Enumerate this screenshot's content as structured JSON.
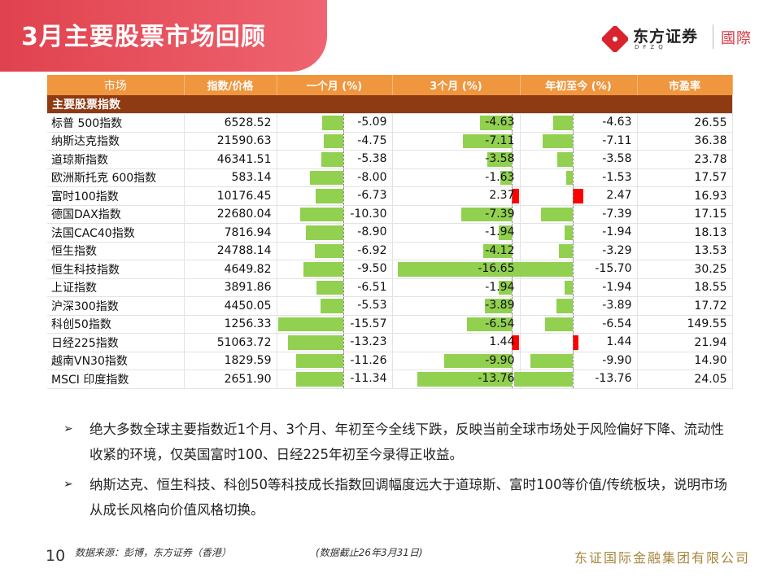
{
  "page": {
    "title": "3月主要股票市场回顾",
    "page_number": "10",
    "source": "数据来源：彭博，东方证券（香港）",
    "as_of": "(数据截止26年3月31日)",
    "company": "东证国际金融集团有限公司"
  },
  "logo": {
    "name_cn": "东方证券",
    "name_en": "DFZQ",
    "intl": "國際"
  },
  "colors": {
    "title_banner": "#e84a56",
    "header": "#ef963e",
    "section": "#8e3a12",
    "bar_negative": "#92d050",
    "bar_positive": "#ff0000",
    "company_text": "#a8863a"
  },
  "table": {
    "headers": [
      "市场",
      "指数/价格",
      "一个月 (%)",
      "3个月 (%)",
      "年初至今 (%)",
      "市盈率"
    ],
    "section_label": "主要股票指数",
    "rows": [
      {
        "name": "标普 500指数",
        "price": "6528.52",
        "m1": "-5.09",
        "m3": "-4.63",
        "ytd": "-4.63",
        "pe": "26.55"
      },
      {
        "name": "纳斯达克指数",
        "price": "21590.63",
        "m1": "-4.75",
        "m3": "-7.11",
        "ytd": "-7.11",
        "pe": "36.38"
      },
      {
        "name": "道琼斯指数",
        "price": "46341.51",
        "m1": "-5.38",
        "m3": "-3.58",
        "ytd": "-3.58",
        "pe": "23.78"
      },
      {
        "name": "欧洲斯托克 600指数",
        "price": "583.14",
        "m1": "-8.00",
        "m3": "-1.63",
        "ytd": "-1.53",
        "pe": "17.57"
      },
      {
        "name": "富时100指数",
        "price": "10176.45",
        "m1": "-6.73",
        "m3": "2.37",
        "ytd": "2.47",
        "pe": "16.93"
      },
      {
        "name": "德国DAX指数",
        "price": "22680.04",
        "m1": "-10.30",
        "m3": "-7.39",
        "ytd": "-7.39",
        "pe": "17.15"
      },
      {
        "name": "法国CAC40指数",
        "price": "7816.94",
        "m1": "-8.90",
        "m3": "-1.94",
        "ytd": "-1.94",
        "pe": "18.13"
      },
      {
        "name": "恒生指数",
        "price": "24788.14",
        "m1": "-6.92",
        "m3": "-4.12",
        "ytd": "-3.29",
        "pe": "13.53"
      },
      {
        "name": "恒生科技指数",
        "price": "4649.82",
        "m1": "-9.50",
        "m3": "-16.65",
        "ytd": "-15.70",
        "pe": "30.25"
      },
      {
        "name": "上证指数",
        "price": "3891.86",
        "m1": "-6.51",
        "m3": "-1.94",
        "ytd": "-1.94",
        "pe": "18.55"
      },
      {
        "name": "沪深300指数",
        "price": "4450.05",
        "m1": "-5.53",
        "m3": "-3.89",
        "ytd": "-3.89",
        "pe": "17.72"
      },
      {
        "name": "科创50指数",
        "price": "1256.33",
        "m1": "-15.57",
        "m3": "-6.54",
        "ytd": "-6.54",
        "pe": "149.55"
      },
      {
        "name": "日经225指数",
        "price": "51063.72",
        "m1": "-13.23",
        "m3": "1.44",
        "ytd": "1.44",
        "pe": "21.94"
      },
      {
        "name": "越南VN30指数",
        "price": "1829.59",
        "m1": "-11.26",
        "m3": "-9.90",
        "ytd": "-9.90",
        "pe": "14.90"
      },
      {
        "name": "MSCI 印度指数",
        "price": "2651.90",
        "m1": "-11.34",
        "m3": "-13.76",
        "ytd": "-13.76",
        "pe": "24.05"
      }
    ]
  },
  "bullets": [
    "绝大多数全球主要指数近1个月、3个月、年初至今全线下跌，反映当前全球市场处于风险偏好下降、流动性收紧的环境，仅英国富时100、日经225年初至今录得正收益。",
    "纳斯达克、恒生科技、科创50等科技成长指数回调幅度远大于道琼斯、富时100等价值/传统板块，说明市场从成长风格向价值风格切换。"
  ]
}
